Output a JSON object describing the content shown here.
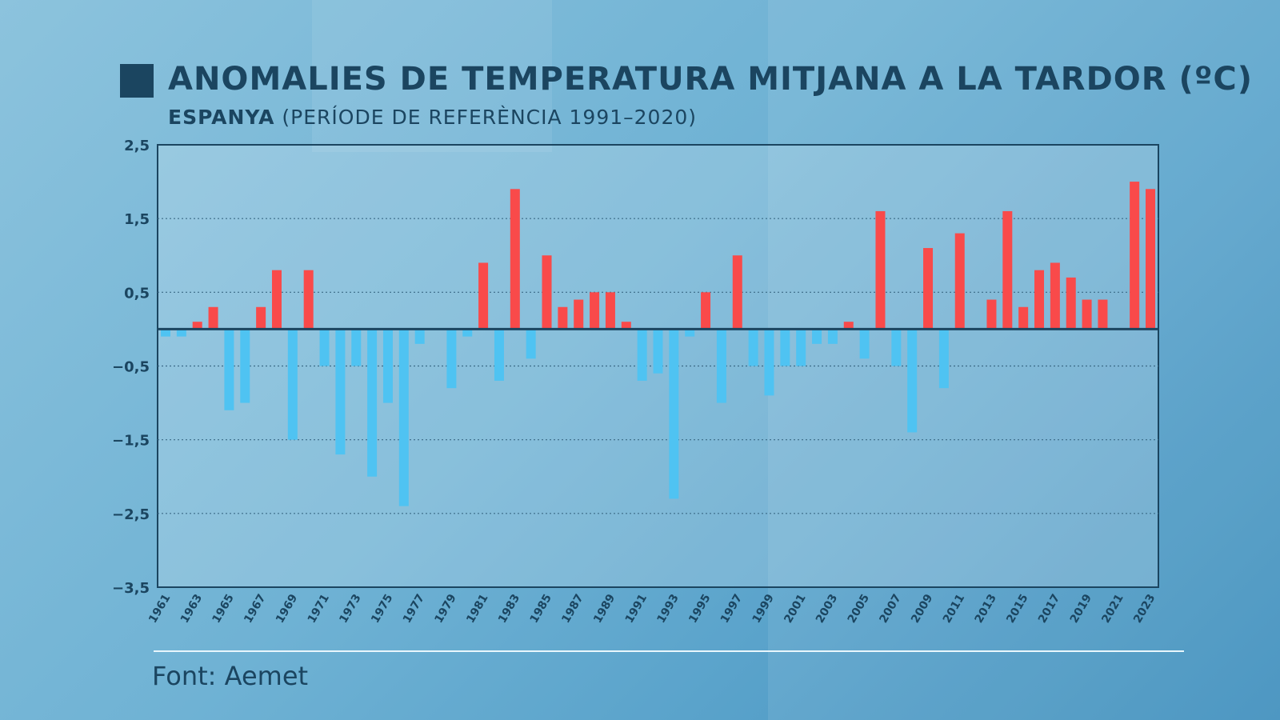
{
  "header": {
    "title": "ANOMALIES DE TEMPERATURA MITJANA A LA TARDOR (ºC)",
    "subtitle_bold": "ESPANYA",
    "subtitle_rest": "(PERÍODE DE REFERÈNCIA 1991–2020)"
  },
  "footer": {
    "source": "Font: Aemet"
  },
  "colors": {
    "positive": "#f94a4a",
    "negative": "#4fc3f2",
    "text": "#1b4560"
  },
  "chart_data": {
    "type": "bar",
    "title": "ANOMALIES DE TEMPERATURA MITJANA A LA TARDOR (ºC)",
    "subtitle": "ESPANYA (PERÍODE DE REFERÈNCIA 1991–2020)",
    "xlabel": "",
    "ylabel": "",
    "ylim": [
      -3.5,
      2.5
    ],
    "yticks": [
      2.5,
      1.5,
      0.5,
      -0.5,
      -1.5,
      -2.5,
      -3.5
    ],
    "ytick_labels": [
      "2,5",
      "1,5",
      "0,5",
      "−0,5",
      "−1,5",
      "−2,5",
      "−3,5"
    ],
    "grid": "horizontal dotted",
    "categories": [
      1961,
      1962,
      1963,
      1964,
      1965,
      1966,
      1967,
      1968,
      1969,
      1970,
      1971,
      1972,
      1973,
      1974,
      1975,
      1976,
      1977,
      1978,
      1979,
      1980,
      1981,
      1982,
      1983,
      1984,
      1985,
      1986,
      1987,
      1988,
      1989,
      1990,
      1991,
      1992,
      1993,
      1994,
      1995,
      1996,
      1997,
      1998,
      1999,
      2000,
      2001,
      2002,
      2003,
      2004,
      2005,
      2006,
      2007,
      2008,
      2009,
      2010,
      2011,
      2012,
      2013,
      2014,
      2015,
      2016,
      2017,
      2018,
      2019,
      2020,
      2021,
      2022,
      2023
    ],
    "xtick_labels": [
      "1961",
      "1963",
      "1965",
      "1967",
      "1969",
      "1971",
      "1973",
      "1975",
      "1977",
      "1979",
      "1981",
      "1983",
      "1985",
      "1987",
      "1989",
      "1991",
      "1993",
      "1995",
      "1997",
      "1999",
      "2001",
      "2003",
      "2005",
      "2007",
      "2009",
      "2011",
      "2013",
      "2015",
      "2017",
      "2019",
      "2021",
      "2023"
    ],
    "values": [
      -0.1,
      -0.1,
      0.1,
      0.3,
      -1.1,
      -1.0,
      0.3,
      0.8,
      -1.5,
      0.8,
      -0.5,
      -1.7,
      -0.5,
      -2.0,
      -1.0,
      -2.4,
      -0.2,
      0.0,
      -0.8,
      -0.1,
      0.9,
      -0.7,
      1.9,
      -0.4,
      1.0,
      0.3,
      0.4,
      0.5,
      0.5,
      0.1,
      -0.7,
      -0.6,
      -2.3,
      -0.1,
      0.5,
      -1.0,
      1.0,
      -0.5,
      -0.9,
      -0.5,
      -0.5,
      -0.2,
      -0.2,
      0.1,
      -0.4,
      1.6,
      -0.5,
      -1.4,
      1.1,
      -0.8,
      1.3,
      0.0,
      0.4,
      1.6,
      0.3,
      0.8,
      0.9,
      0.7,
      0.4,
      0.4,
      0.0,
      2.0,
      1.9
    ]
  }
}
